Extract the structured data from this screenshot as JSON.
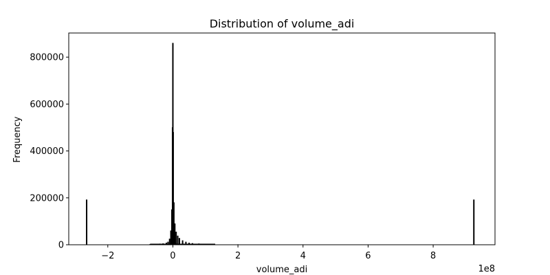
{
  "chart_data": {
    "type": "bar",
    "title": "Distribution of volume_adi",
    "xlabel": "volume_adi",
    "ylabel": "Frequency",
    "x_offset_label": "1e8",
    "x_scale": 100000000,
    "xlim": [
      -3.2,
      9.9
    ],
    "ylim": [
      0,
      903000
    ],
    "x_ticks": [
      -2,
      0,
      2,
      4,
      6,
      8
    ],
    "x_tick_labels": [
      "−2",
      "0",
      "2",
      "4",
      "6",
      "8"
    ],
    "y_ticks": [
      0,
      200000,
      400000,
      600000,
      800000
    ],
    "y_tick_labels": [
      "0",
      "200000",
      "400000",
      "600000",
      "800000"
    ],
    "grid": false,
    "bar_color": "#000000",
    "edge_color": "#000000",
    "bins": [
      {
        "x": -2.65,
        "value": 192000
      },
      {
        "x": -0.7,
        "value": 2000
      },
      {
        "x": -0.6,
        "value": 2500
      },
      {
        "x": -0.5,
        "value": 3000
      },
      {
        "x": -0.4,
        "value": 4000
      },
      {
        "x": -0.3,
        "value": 5000
      },
      {
        "x": -0.2,
        "value": 8000
      },
      {
        "x": -0.15,
        "value": 12000
      },
      {
        "x": -0.1,
        "value": 25000
      },
      {
        "x": -0.06,
        "value": 60000
      },
      {
        "x": -0.03,
        "value": 150000
      },
      {
        "x": -0.01,
        "value": 500000
      },
      {
        "x": 0.0,
        "value": 860000
      },
      {
        "x": 0.01,
        "value": 480000
      },
      {
        "x": 0.03,
        "value": 180000
      },
      {
        "x": 0.06,
        "value": 90000
      },
      {
        "x": 0.1,
        "value": 55000
      },
      {
        "x": 0.15,
        "value": 38000
      },
      {
        "x": 0.2,
        "value": 28000
      },
      {
        "x": 0.3,
        "value": 18000
      },
      {
        "x": 0.4,
        "value": 12000
      },
      {
        "x": 0.5,
        "value": 8000
      },
      {
        "x": 0.6,
        "value": 6000
      },
      {
        "x": 0.8,
        "value": 4500
      },
      {
        "x": 1.0,
        "value": 3500
      },
      {
        "x": 1.2,
        "value": 3000
      },
      {
        "x": 2.0,
        "value": 1000
      },
      {
        "x": 4.0,
        "value": 800
      },
      {
        "x": 6.0,
        "value": 700
      },
      {
        "x": 8.0,
        "value": 600
      },
      {
        "x": 9.25,
        "value": 192000
      }
    ]
  }
}
